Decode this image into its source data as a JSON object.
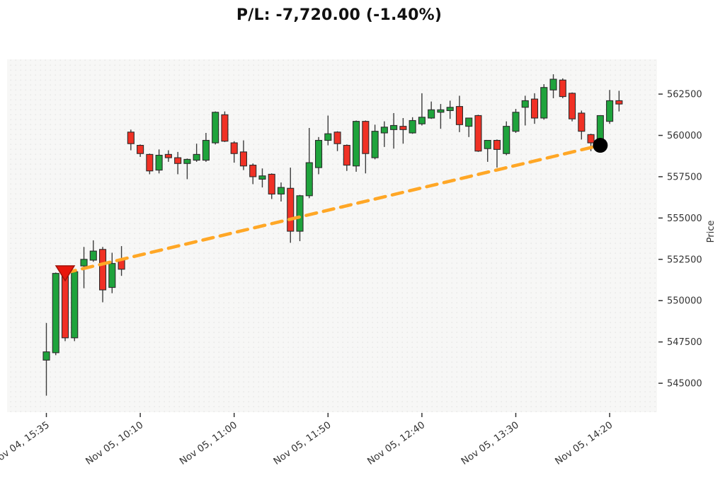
{
  "title": "P/L: -7,720.00 (-1.40%)",
  "axes": {
    "y_label": "Price",
    "y_ticks": [
      562500,
      560000,
      557500,
      555000,
      552500,
      550000,
      547500,
      545000
    ],
    "x_ticks": [
      {
        "i": 0,
        "label": "Nov 04, 15:35"
      },
      {
        "i": 10,
        "label": "Nov 05, 10:10"
      },
      {
        "i": 20,
        "label": "Nov 05, 11:00"
      },
      {
        "i": 30,
        "label": "Nov 05, 11:50"
      },
      {
        "i": 40,
        "label": "Nov 05, 12:40"
      },
      {
        "i": 50,
        "label": "Nov 05, 13:30"
      },
      {
        "i": 60,
        "label": "Nov 05, 14:20"
      }
    ]
  },
  "chart_data": {
    "type": "candlestick",
    "title": "P/L: -7,720.00 (-1.40%)",
    "ylabel": "Price",
    "ylim": [
      543250,
      564600
    ],
    "grid": false,
    "interval_minutes": 5,
    "columns": [
      "time",
      "open",
      "high",
      "low",
      "close"
    ],
    "candles": [
      [
        "Nov 04 15:35",
        546400,
        548650,
        544250,
        546900
      ],
      [
        "Nov 04 15:40",
        546850,
        551700,
        546700,
        551650
      ],
      [
        "Nov 04 15:45",
        551500,
        551650,
        547550,
        547750
      ],
      [
        "Nov 04 15:50",
        547750,
        551800,
        547550,
        551750
      ],
      [
        "Nov 04 15:55",
        552100,
        553250,
        550750,
        552500
      ],
      [
        "Nov 04 16:00",
        552450,
        553650,
        552350,
        553000
      ],
      [
        "Nov 04 16:05",
        553100,
        553250,
        549900,
        550650
      ],
      [
        "Nov 04 16:10",
        550800,
        552900,
        550450,
        552250
      ],
      [
        "Nov 04 16:15",
        552500,
        553300,
        551500,
        551900
      ],
      [
        "Nov 05 10:05",
        560200,
        560350,
        559100,
        559500
      ],
      [
        "Nov 05 10:10",
        559400,
        559450,
        558700,
        558900
      ],
      [
        "Nov 05 10:15",
        558850,
        558900,
        557650,
        557850
      ],
      [
        "Nov 05 10:20",
        557900,
        559150,
        557700,
        558800
      ],
      [
        "Nov 05 10:25",
        558850,
        559100,
        558400,
        558650
      ],
      [
        "Nov 05 10:30",
        558650,
        559000,
        557650,
        558300
      ],
      [
        "Nov 05 10:35",
        558300,
        558600,
        557350,
        558550
      ],
      [
        "Nov 05 10:40",
        558500,
        559500,
        558400,
        558850
      ],
      [
        "Nov 05 10:45",
        558500,
        560150,
        558400,
        559700
      ],
      [
        "Nov 05 10:50",
        559550,
        561450,
        559450,
        561400
      ],
      [
        "Nov 05 10:55",
        561250,
        561450,
        559600,
        559650
      ],
      [
        "Nov 05 11:00",
        559550,
        559650,
        558350,
        558900
      ],
      [
        "Nov 05 11:05",
        559000,
        559700,
        557900,
        558150
      ],
      [
        "Nov 05 11:10",
        558200,
        558300,
        557050,
        557500
      ],
      [
        "Nov 05 11:15",
        557350,
        558000,
        556850,
        557550
      ],
      [
        "Nov 05 11:20",
        557650,
        557700,
        556150,
        556450
      ],
      [
        "Nov 05 11:25",
        556450,
        557150,
        556000,
        556850
      ],
      [
        "Nov 05 11:30",
        556800,
        558050,
        553500,
        554200
      ],
      [
        "Nov 05 11:35",
        554200,
        556400,
        553600,
        556350
      ],
      [
        "Nov 05 11:40",
        556350,
        560450,
        556200,
        558350
      ],
      [
        "Nov 05 11:45",
        558050,
        559900,
        557650,
        559700
      ],
      [
        "Nov 05 11:50",
        559700,
        561200,
        559400,
        560100
      ],
      [
        "Nov 05 11:55",
        560200,
        560250,
        559050,
        559500
      ],
      [
        "Nov 05 12:00",
        559400,
        559450,
        557850,
        558200
      ],
      [
        "Nov 05 12:05",
        558150,
        560900,
        557800,
        560850
      ],
      [
        "Nov 05 12:10",
        560850,
        560900,
        557700,
        558900
      ],
      [
        "Nov 05 12:15",
        558650,
        560650,
        558550,
        560250
      ],
      [
        "Nov 05 12:20",
        560150,
        560850,
        559300,
        560500
      ],
      [
        "Nov 05 12:25",
        560350,
        561350,
        559200,
        560600
      ],
      [
        "Nov 05 12:30",
        560550,
        561050,
        559500,
        560350
      ],
      [
        "Nov 05 12:35",
        560150,
        561100,
        560100,
        560900
      ],
      [
        "Nov 05 12:40",
        560700,
        562550,
        560600,
        561100
      ],
      [
        "Nov 05 12:45",
        561050,
        562050,
        561000,
        561550
      ],
      [
        "Nov 05 12:50",
        561400,
        561900,
        560400,
        561550
      ],
      [
        "Nov 05 12:55",
        561500,
        562100,
        561000,
        561700
      ],
      [
        "Nov 05 13:00",
        561750,
        562400,
        560200,
        560650
      ],
      [
        "Nov 05 13:05",
        560550,
        561050,
        559900,
        561050
      ],
      [
        "Nov 05 13:10",
        561200,
        561250,
        559000,
        559050
      ],
      [
        "Nov 05 13:15",
        559200,
        559700,
        558400,
        559700
      ],
      [
        "Nov 05 13:20",
        559700,
        559750,
        558050,
        559150
      ],
      [
        "Nov 05 13:25",
        558900,
        560850,
        558800,
        560550
      ],
      [
        "Nov 05 13:30",
        560250,
        561600,
        560150,
        561400
      ],
      [
        "Nov 05 13:35",
        561700,
        562400,
        560600,
        562100
      ],
      [
        "Nov 05 13:40",
        562200,
        562550,
        560700,
        561050
      ],
      [
        "Nov 05 13:45",
        561050,
        563100,
        560950,
        562900
      ],
      [
        "Nov 05 13:50",
        562750,
        563700,
        562250,
        563400
      ],
      [
        "Nov 05 13:55",
        563350,
        563450,
        562250,
        562350
      ],
      [
        "Nov 05 14:00",
        562550,
        562600,
        560850,
        561000
      ],
      [
        "Nov 05 14:05",
        561350,
        561500,
        559750,
        560250
      ],
      [
        "Nov 05 14:10",
        560050,
        560100,
        559050,
        559550
      ],
      [
        "Nov 05 14:15",
        559400,
        561200,
        559300,
        561200
      ],
      [
        "Nov 05 14:20",
        560850,
        562750,
        560700,
        562100
      ],
      [
        "Nov 05 14:25",
        562100,
        562700,
        561450,
        561900
      ]
    ],
    "annotations": {
      "entry_marker": {
        "time": "Nov 04 15:45",
        "index": 2,
        "price": 551680,
        "shape": "triangle-down",
        "meaning": "sell entry"
      },
      "exit_marker": {
        "time": "Nov 05 14:15",
        "index": 59,
        "price": 559400,
        "shape": "circle",
        "meaning": "exit"
      },
      "trend_line": {
        "style": "dashed",
        "from": {
          "index": 2,
          "price": 551680
        },
        "to": {
          "index": 59,
          "price": 559400
        }
      }
    }
  },
  "colors": {
    "up": "#1fa33c",
    "down": "#f03125",
    "candle_edge": "#2b2b2b",
    "wick": "#3c3c3c",
    "trend_line": "#ffa726",
    "entry_marker": "#e8160c",
    "entry_marker_edge": "#9e120a",
    "exit_marker": "#000000",
    "plot_bg": "#f7f7f6",
    "plot_dots": "#e9e9e7",
    "tick_text": "#333333",
    "title_text": "#111111"
  }
}
